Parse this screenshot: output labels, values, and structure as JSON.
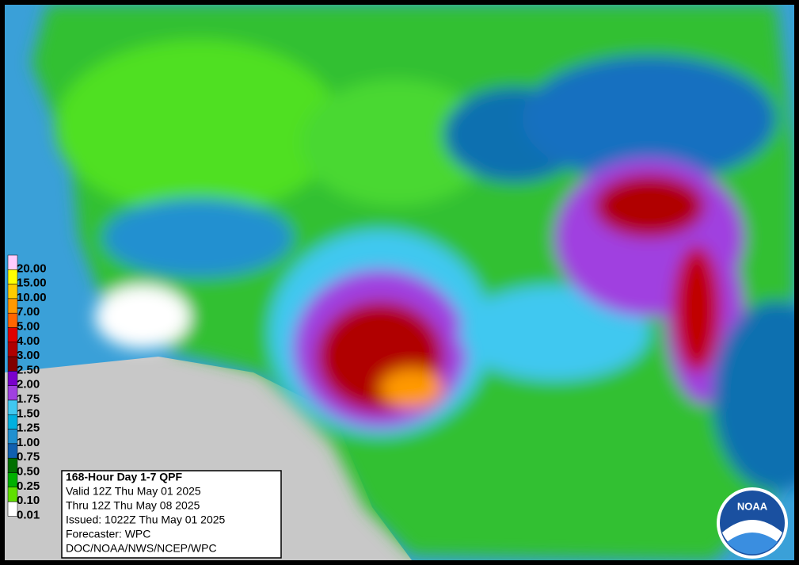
{
  "info_box": {
    "lines": [
      "168-Hour Day 1-7 QPF",
      "Valid 12Z Thu May 01 2025",
      "Thru 12Z Thu May 08 2025",
      "Issued: 1022Z Thu May 01 2025",
      "Forecaster: WPC",
      "DOC/NOAA/NWS/NCEP/WPC"
    ]
  },
  "legend": {
    "items": [
      {
        "label": "20.00",
        "color": "#ffccff"
      },
      {
        "label": "15.00",
        "color": "#ffff00"
      },
      {
        "label": "10.00",
        "color": "#ffcc00"
      },
      {
        "label": "7.00",
        "color": "#ff9900"
      },
      {
        "label": "5.00",
        "color": "#ff6600"
      },
      {
        "label": "4.00",
        "color": "#e00000"
      },
      {
        "label": "3.00",
        "color": "#b00000"
      },
      {
        "label": "2.50",
        "color": "#800000"
      },
      {
        "label": "2.00",
        "color": "#7a00cc"
      },
      {
        "label": "1.75",
        "color": "#a040e0"
      },
      {
        "label": "1.50",
        "color": "#40c8f0"
      },
      {
        "label": "1.25",
        "color": "#00b0e0"
      },
      {
        "label": "1.00",
        "color": "#2090d0"
      },
      {
        "label": "0.75",
        "color": "#1060b0"
      },
      {
        "label": "0.50",
        "color": "#007000"
      },
      {
        "label": "0.25",
        "color": "#00b000"
      },
      {
        "label": "0.10",
        "color": "#60e000"
      },
      {
        "label": "0.01",
        "color": "#ffffff"
      }
    ]
  },
  "logo": {
    "text": "NOAA"
  }
}
